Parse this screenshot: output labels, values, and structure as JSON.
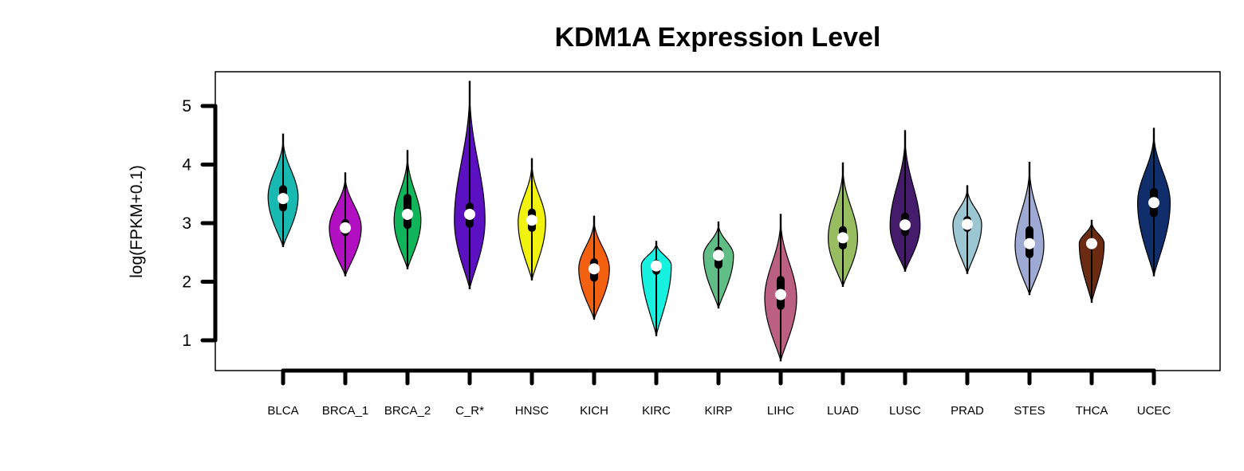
{
  "chart_data": {
    "type": "violin",
    "title": "KDM1A Expression Level",
    "xlabel": "",
    "ylabel": "log(FPKM+0.1)",
    "ylim": [
      0.5,
      5.6
    ],
    "yticks": [
      1,
      2,
      3,
      4,
      5
    ],
    "ytick_labels": [
      "1",
      "2",
      "3",
      "4",
      "5"
    ],
    "grid": false,
    "legend": "none",
    "categories": [
      "BLCA",
      "BRCA_1",
      "BRCA_2",
      "C_R*",
      "HNSC",
      "KICH",
      "KIRC",
      "KIRP",
      "LIHC",
      "LUAD",
      "LUSC",
      "PRAD",
      "STES",
      "THCA",
      "UCEC"
    ],
    "colors": [
      "#17b9b1",
      "#b10fc1",
      "#10b45a",
      "#5b10c1",
      "#f2f20f",
      "#f26010",
      "#17f2e0",
      "#5fbd85",
      "#bb6081",
      "#97bd60",
      "#451c6b",
      "#9dc6d3",
      "#9eaad4",
      "#6a2b12",
      "#102e6b"
    ],
    "series": [
      {
        "name": "BLCA",
        "min": 2.6,
        "q1": 3.2,
        "median": 3.42,
        "q3": 3.65,
        "max": 4.52,
        "mode": 3.45,
        "width": 0.47
      },
      {
        "name": "BRCA_1",
        "min": 2.1,
        "q1": 2.78,
        "median": 2.92,
        "q3": 3.07,
        "max": 3.86,
        "mode": 2.92,
        "width": 0.5
      },
      {
        "name": "BRCA_2",
        "min": 2.22,
        "q1": 2.9,
        "median": 3.15,
        "q3": 3.5,
        "max": 4.24,
        "mode": 3.05,
        "width": 0.42
      },
      {
        "name": "C_R*",
        "min": 1.88,
        "q1": 2.92,
        "median": 3.15,
        "q3": 3.35,
        "max": 5.42,
        "mode": 3.05,
        "width": 0.48
      },
      {
        "name": "HNSC",
        "min": 2.03,
        "q1": 2.85,
        "median": 3.05,
        "q3": 3.25,
        "max": 4.1,
        "mode": 3.02,
        "width": 0.43
      },
      {
        "name": "KICH",
        "min": 1.36,
        "q1": 2.0,
        "median": 2.22,
        "q3": 2.4,
        "max": 3.12,
        "mode": 2.22,
        "width": 0.48
      },
      {
        "name": "KIRC",
        "min": 1.08,
        "q1": 2.12,
        "median": 2.27,
        "q3": 2.38,
        "max": 2.69,
        "mode": 2.28,
        "width": 0.47
      },
      {
        "name": "KIRP",
        "min": 1.55,
        "q1": 2.22,
        "median": 2.45,
        "q3": 2.6,
        "max": 3.02,
        "mode": 2.45,
        "width": 0.47
      },
      {
        "name": "LIHC",
        "min": 0.65,
        "q1": 1.52,
        "median": 1.78,
        "q3": 2.1,
        "max": 3.15,
        "mode": 1.72,
        "width": 0.5
      },
      {
        "name": "LUAD",
        "min": 1.92,
        "q1": 2.55,
        "median": 2.75,
        "q3": 2.95,
        "max": 4.03,
        "mode": 2.75,
        "width": 0.46
      },
      {
        "name": "LUSC",
        "min": 2.18,
        "q1": 2.78,
        "median": 2.97,
        "q3": 3.18,
        "max": 4.58,
        "mode": 2.95,
        "width": 0.47
      },
      {
        "name": "PRAD",
        "min": 2.14,
        "q1": 2.85,
        "median": 2.98,
        "q3": 3.12,
        "max": 3.64,
        "mode": 2.98,
        "width": 0.45
      },
      {
        "name": "STES",
        "min": 1.78,
        "q1": 2.4,
        "median": 2.65,
        "q3": 2.95,
        "max": 4.04,
        "mode": 2.62,
        "width": 0.45
      },
      {
        "name": "THCA",
        "min": 1.65,
        "q1": 2.55,
        "median": 2.65,
        "q3": 2.73,
        "max": 3.05,
        "mode": 2.65,
        "width": 0.39
      },
      {
        "name": "UCEC",
        "min": 2.1,
        "q1": 3.1,
        "median": 3.35,
        "q3": 3.6,
        "max": 4.62,
        "mode": 3.35,
        "width": 0.51
      }
    ]
  }
}
